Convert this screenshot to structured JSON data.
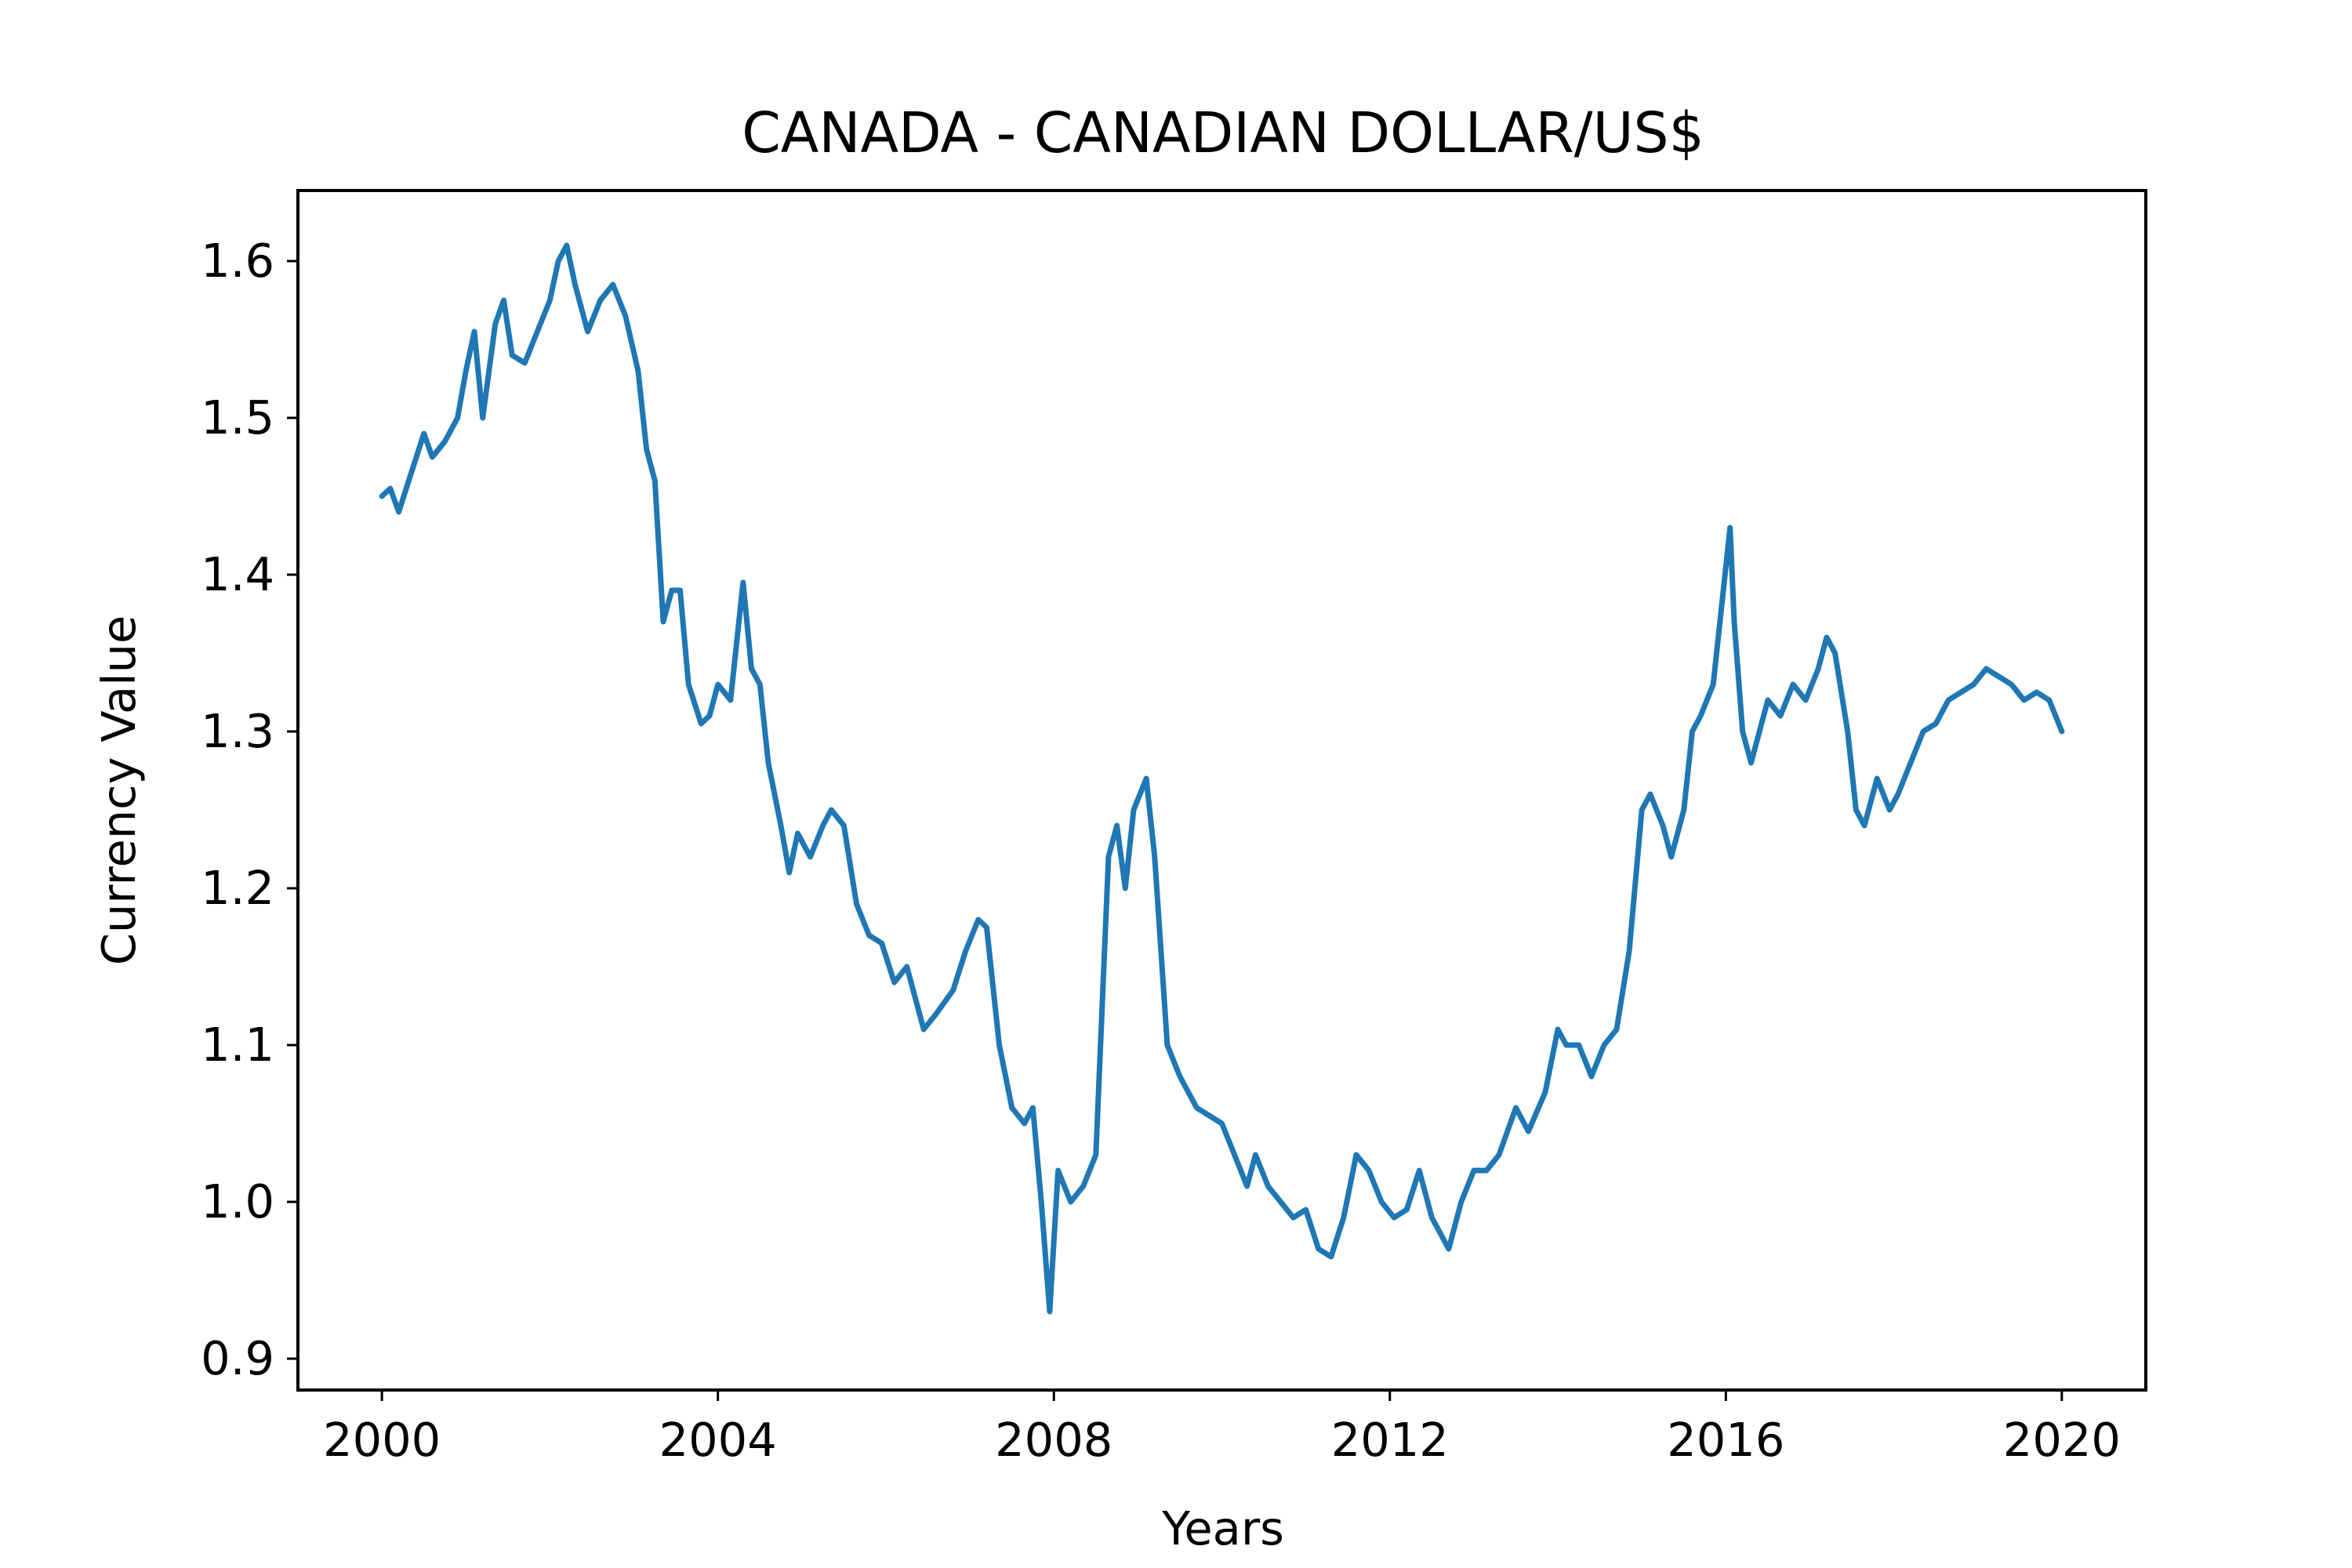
{
  "chart_data": {
    "type": "line",
    "title": "CANADA - CANADIAN DOLLAR/US$",
    "xlabel": "Years",
    "ylabel": "Currency Value",
    "xlim": [
      1999.0,
      2021.0
    ],
    "ylim": [
      0.88,
      1.645
    ],
    "x_ticks": [
      2000,
      2004,
      2008,
      2012,
      2016,
      2020
    ],
    "x_tick_labels": [
      "2000",
      "2004",
      "2008",
      "2012",
      "2016",
      "2020"
    ],
    "y_ticks": [
      0.9,
      1.0,
      1.1,
      1.2,
      1.3,
      1.4,
      1.5,
      1.6
    ],
    "y_tick_labels": [
      "0.9",
      "1.0",
      "1.1",
      "1.2",
      "1.3",
      "1.4",
      "1.5",
      "1.6"
    ],
    "grid": false,
    "colors": {
      "line": "#1f77b4",
      "axes": "#000000",
      "background": "#ffffff"
    },
    "series": [
      {
        "x": [
          2000.0,
          2000.1,
          2000.2,
          2000.35,
          2000.5,
          2000.6,
          2000.75,
          2000.9,
          2001.0,
          2001.1,
          2001.2,
          2001.35,
          2001.45,
          2001.55,
          2001.7,
          2001.85,
          2002.0,
          2002.1,
          2002.2,
          2002.3,
          2002.45,
          2002.6,
          2002.75,
          2002.9,
          2003.05,
          2003.15,
          2003.25,
          2003.35,
          2003.45,
          2003.55,
          2003.65,
          2003.8,
          2003.9,
          2004.0,
          2004.15,
          2004.3,
          2004.4,
          2004.5,
          2004.6,
          2004.75,
          2004.85,
          2004.95,
          2005.1,
          2005.25,
          2005.35,
          2005.5,
          2005.65,
          2005.8,
          2005.95,
          2006.1,
          2006.25,
          2006.45,
          2006.6,
          2006.8,
          2006.95,
          2007.1,
          2007.2,
          2007.35,
          2007.5,
          2007.65,
          2007.75,
          2007.85,
          2007.95,
          2008.05,
          2008.2,
          2008.35,
          2008.5,
          2008.65,
          2008.75,
          2008.85,
          2008.95,
          2009.1,
          2009.2,
          2009.35,
          2009.5,
          2009.7,
          2009.85,
          2010.0,
          2010.15,
          2010.3,
          2010.4,
          2010.55,
          2010.7,
          2010.85,
          2011.0,
          2011.15,
          2011.3,
          2011.45,
          2011.6,
          2011.75,
          2011.9,
          2012.05,
          2012.2,
          2012.35,
          2012.5,
          2012.6,
          2012.7,
          2012.85,
          2013.0,
          2013.15,
          2013.3,
          2013.5,
          2013.65,
          2013.85,
          2014.0,
          2014.1,
          2014.25,
          2014.4,
          2014.55,
          2014.7,
          2014.85,
          2015.0,
          2015.1,
          2015.25,
          2015.35,
          2015.5,
          2015.6,
          2015.7,
          2015.85,
          2015.95,
          2016.05,
          2016.1,
          2016.2,
          2016.3,
          2016.4,
          2016.5,
          2016.65,
          2016.8,
          2016.95,
          2017.1,
          2017.2,
          2017.3,
          2017.45,
          2017.55,
          2017.65,
          2017.8,
          2017.95,
          2018.05,
          2018.2,
          2018.35,
          2018.5,
          2018.65,
          2018.8,
          2018.95,
          2019.1,
          2019.25,
          2019.4,
          2019.55,
          2019.7,
          2019.85,
          2020.0
        ],
        "y": [
          1.45,
          1.455,
          1.44,
          1.465,
          1.49,
          1.475,
          1.485,
          1.5,
          1.53,
          1.555,
          1.5,
          1.56,
          1.575,
          1.54,
          1.535,
          1.555,
          1.575,
          1.6,
          1.61,
          1.585,
          1.555,
          1.575,
          1.585,
          1.565,
          1.53,
          1.48,
          1.46,
          1.37,
          1.39,
          1.39,
          1.33,
          1.305,
          1.31,
          1.33,
          1.32,
          1.395,
          1.34,
          1.33,
          1.28,
          1.24,
          1.21,
          1.235,
          1.22,
          1.24,
          1.25,
          1.24,
          1.19,
          1.17,
          1.165,
          1.14,
          1.15,
          1.11,
          1.12,
          1.135,
          1.16,
          1.18,
          1.175,
          1.1,
          1.06,
          1.05,
          1.06,
          1.0,
          0.93,
          1.02,
          1.0,
          1.01,
          1.03,
          1.22,
          1.24,
          1.2,
          1.25,
          1.27,
          1.22,
          1.1,
          1.08,
          1.06,
          1.055,
          1.05,
          1.03,
          1.01,
          1.03,
          1.01,
          1.0,
          0.99,
          0.995,
          0.97,
          0.965,
          0.99,
          1.03,
          1.02,
          1.0,
          0.99,
          0.995,
          1.02,
          0.99,
          0.98,
          0.97,
          1.0,
          1.02,
          1.02,
          1.03,
          1.06,
          1.045,
          1.07,
          1.11,
          1.1,
          1.1,
          1.08,
          1.1,
          1.11,
          1.16,
          1.25,
          1.26,
          1.24,
          1.22,
          1.25,
          1.3,
          1.31,
          1.33,
          1.38,
          1.43,
          1.37,
          1.3,
          1.28,
          1.3,
          1.32,
          1.31,
          1.33,
          1.32,
          1.34,
          1.36,
          1.35,
          1.3,
          1.25,
          1.24,
          1.27,
          1.25,
          1.26,
          1.28,
          1.3,
          1.305,
          1.32,
          1.325,
          1.33,
          1.34,
          1.335,
          1.33,
          1.32,
          1.325,
          1.32,
          1.3
        ]
      }
    ]
  }
}
